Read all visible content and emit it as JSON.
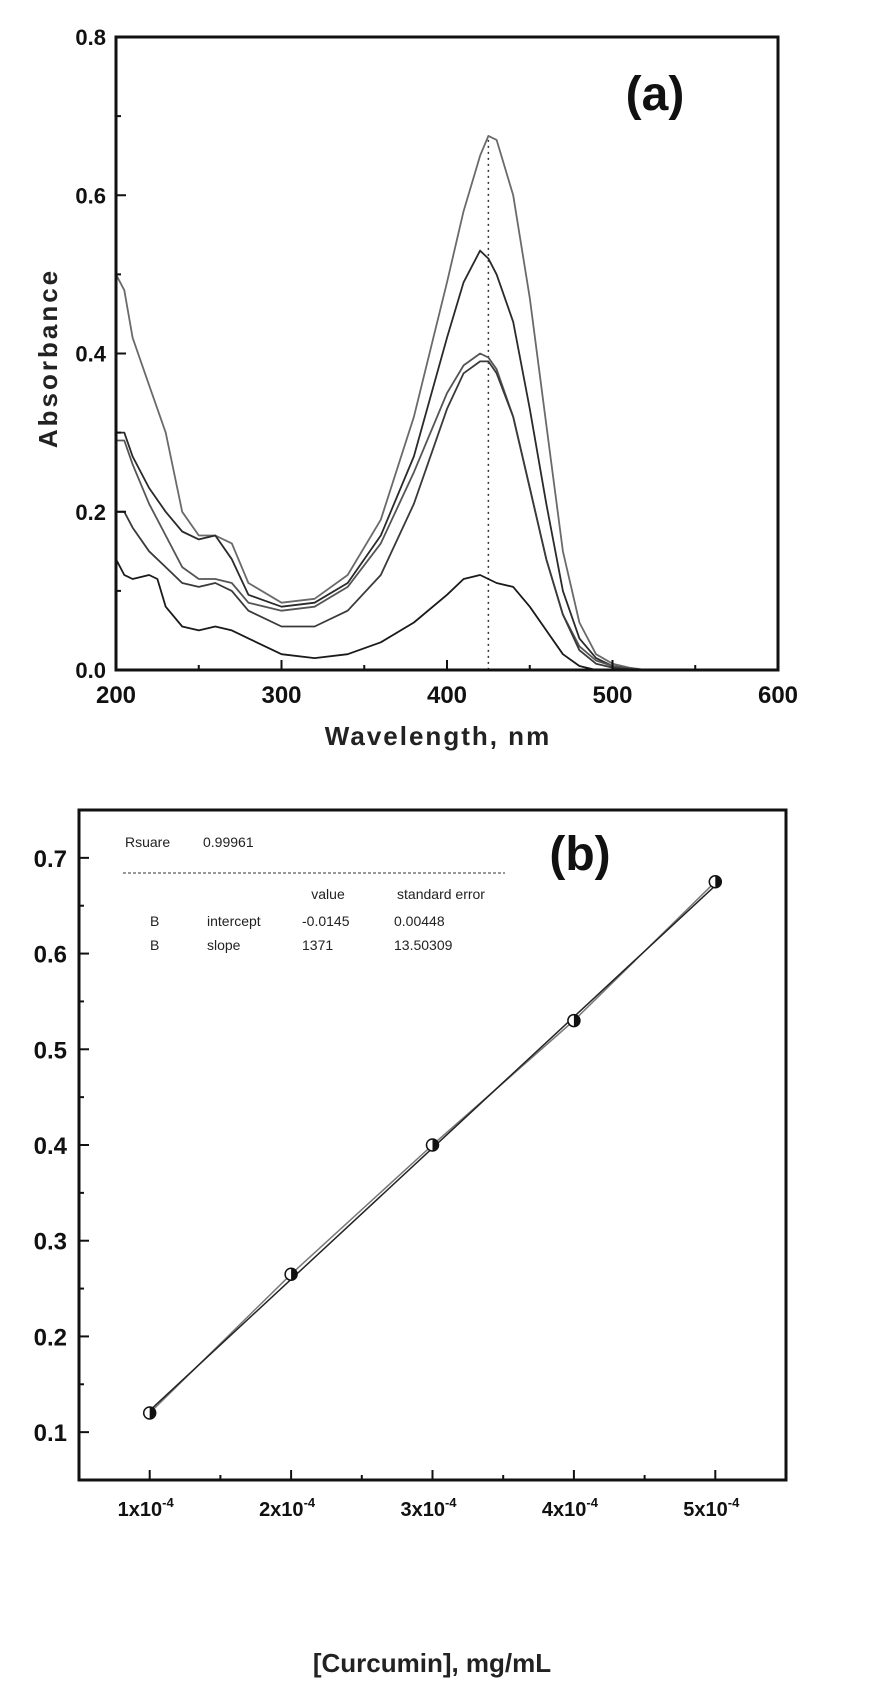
{
  "chart_data": [
    {
      "type": "line",
      "panel_label": "(a)",
      "xlabel": "Wavelength, nm",
      "ylabel": "Absorbance",
      "xlim": [
        200,
        600
      ],
      "ylim": [
        0.0,
        0.8
      ],
      "xticks": [
        "200",
        "300",
        "400",
        "500",
        "600"
      ],
      "yticks": [
        "0.0",
        "0.2",
        "0.4",
        "0.6",
        "0.8"
      ],
      "grid": false,
      "reference_line": {
        "x": 425,
        "style": "dotted"
      },
      "series": [
        {
          "x": [
            200,
            205,
            210,
            220,
            230,
            240,
            250,
            260,
            270,
            280,
            300,
            320,
            340,
            360,
            380,
            400,
            410,
            420,
            425,
            430,
            440,
            450,
            460,
            470,
            480,
            490,
            500,
            510,
            520,
            540
          ],
          "y": [
            0.5,
            0.48,
            0.42,
            0.36,
            0.3,
            0.2,
            0.17,
            0.17,
            0.16,
            0.11,
            0.085,
            0.09,
            0.12,
            0.19,
            0.32,
            0.49,
            0.58,
            0.65,
            0.675,
            0.67,
            0.6,
            0.47,
            0.31,
            0.15,
            0.06,
            0.02,
            0.008,
            0.003,
            0.0,
            0.0
          ]
        },
        {
          "x": [
            200,
            205,
            210,
            220,
            230,
            240,
            250,
            260,
            270,
            280,
            300,
            320,
            340,
            360,
            380,
            400,
            410,
            420,
            425,
            430,
            440,
            450,
            460,
            470,
            480,
            490,
            500,
            510,
            520,
            540
          ],
          "y": [
            0.3,
            0.3,
            0.27,
            0.23,
            0.2,
            0.175,
            0.165,
            0.17,
            0.14,
            0.095,
            0.08,
            0.085,
            0.11,
            0.17,
            0.27,
            0.42,
            0.49,
            0.53,
            0.52,
            0.5,
            0.44,
            0.33,
            0.21,
            0.1,
            0.04,
            0.015,
            0.005,
            0.002,
            0.0,
            0.0
          ]
        },
        {
          "x": [
            200,
            205,
            210,
            220,
            230,
            240,
            250,
            260,
            270,
            280,
            300,
            320,
            340,
            360,
            380,
            400,
            410,
            420,
            425,
            430,
            440,
            450,
            460,
            470,
            480,
            490,
            500,
            510,
            520,
            540
          ],
          "y": [
            0.29,
            0.29,
            0.26,
            0.21,
            0.17,
            0.13,
            0.115,
            0.115,
            0.11,
            0.085,
            0.075,
            0.08,
            0.105,
            0.16,
            0.25,
            0.35,
            0.385,
            0.4,
            0.395,
            0.38,
            0.32,
            0.23,
            0.14,
            0.07,
            0.03,
            0.012,
            0.005,
            0.002,
            0.0,
            0.0
          ]
        },
        {
          "x": [
            200,
            205,
            210,
            220,
            230,
            240,
            250,
            260,
            270,
            280,
            300,
            320,
            340,
            360,
            380,
            400,
            410,
            420,
            425,
            430,
            440,
            450,
            460,
            470,
            480,
            490,
            500,
            510,
            520,
            540
          ],
          "y": [
            0.2,
            0.2,
            0.18,
            0.15,
            0.13,
            0.11,
            0.105,
            0.11,
            0.1,
            0.075,
            0.055,
            0.055,
            0.075,
            0.12,
            0.21,
            0.33,
            0.375,
            0.39,
            0.39,
            0.375,
            0.32,
            0.23,
            0.14,
            0.07,
            0.025,
            0.008,
            0.003,
            0.001,
            0.0,
            0.0
          ]
        },
        {
          "x": [
            200,
            205,
            210,
            220,
            225,
            230,
            240,
            250,
            260,
            270,
            280,
            300,
            320,
            340,
            360,
            380,
            400,
            410,
            420,
            430,
            440,
            450,
            460,
            470,
            480,
            490,
            500
          ],
          "y": [
            0.14,
            0.12,
            0.115,
            0.12,
            0.115,
            0.08,
            0.055,
            0.05,
            0.055,
            0.05,
            0.04,
            0.02,
            0.015,
            0.02,
            0.035,
            0.06,
            0.095,
            0.115,
            0.12,
            0.11,
            0.105,
            0.08,
            0.05,
            0.02,
            0.005,
            0.0,
            0.0
          ]
        }
      ]
    },
    {
      "type": "scatter",
      "panel_label": "(b)",
      "xlabel": "[Curcumin], mg/mL",
      "ylabel": "",
      "xlim": [
        5e-05,
        0.00055
      ],
      "ylim": [
        0.05,
        0.75
      ],
      "xticks": [
        {
          "mant": "1x10",
          "exp": "-4",
          "value": 0.0001
        },
        {
          "mant": "2x10",
          "exp": "-4",
          "value": 0.0002
        },
        {
          "mant": "3x10",
          "exp": "-4",
          "value": 0.0003
        },
        {
          "mant": "4x10",
          "exp": "-4",
          "value": 0.0004
        },
        {
          "mant": "5x10",
          "exp": "-4",
          "value": 0.0005
        }
      ],
      "yticks": [
        "0.1",
        "0.2",
        "0.3",
        "0.4",
        "0.5",
        "0.6",
        "0.7"
      ],
      "grid": false,
      "x": [
        0.0001,
        0.0002,
        0.0003,
        0.0004,
        0.0005
      ],
      "y": [
        0.12,
        0.265,
        0.4,
        0.53,
        0.675
      ],
      "fit": {
        "intercept": -0.0145,
        "slope": 1371
      },
      "fit_table": {
        "rsquare_label": "Rsuare",
        "rsquare_value": "0.99961",
        "col_value": "value",
        "col_error": "standard error",
        "rows": [
          {
            "name": "B",
            "param": "intercept",
            "value": "-0.0145",
            "error": "0.00448"
          },
          {
            "name": "B",
            "param": "slope",
            "value": "1371",
            "error": "13.50309"
          }
        ]
      }
    }
  ]
}
